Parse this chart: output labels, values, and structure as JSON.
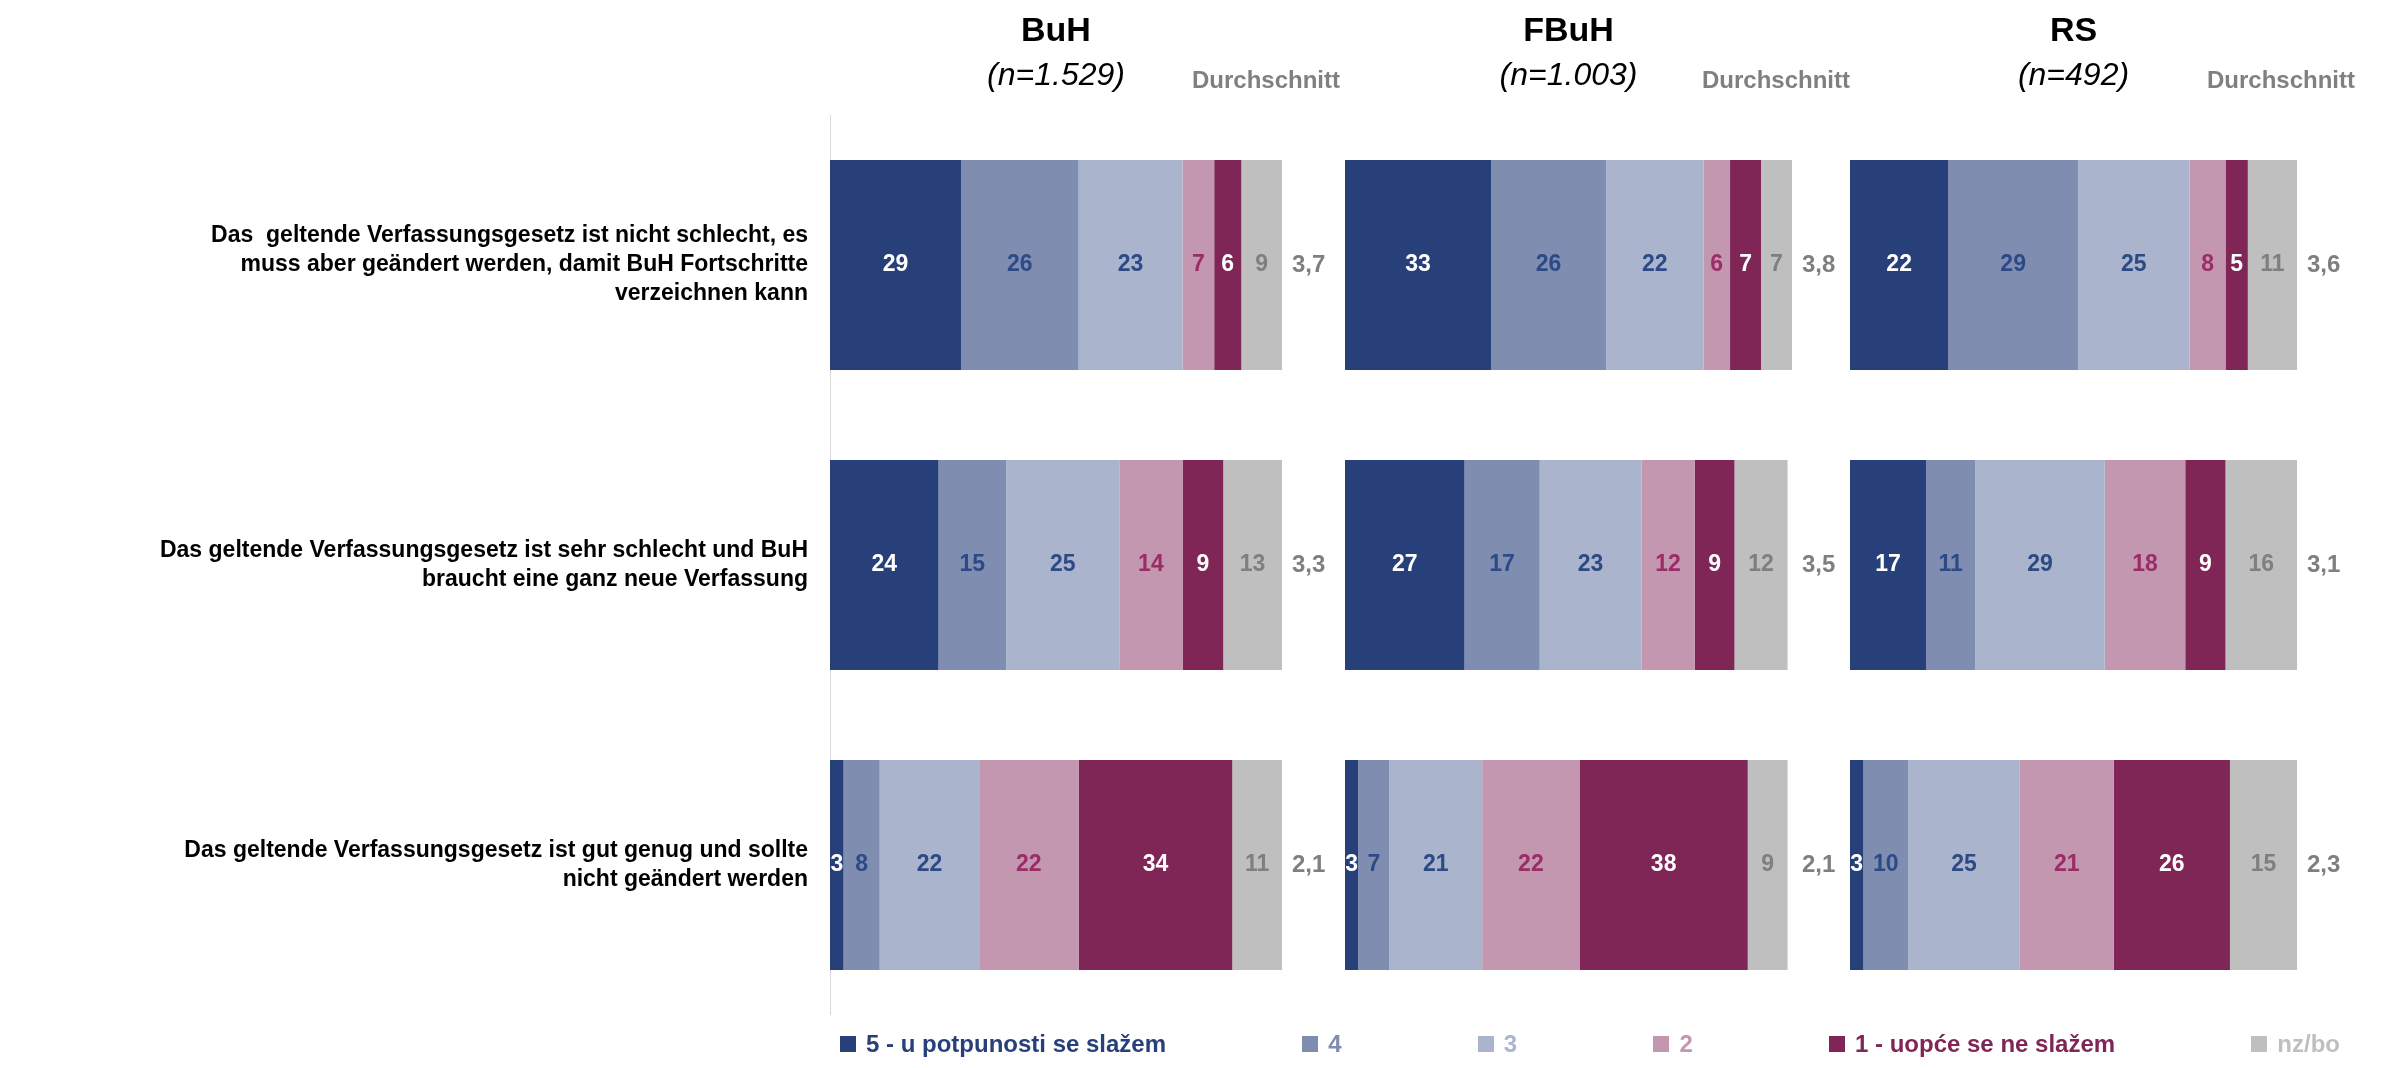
{
  "chart_data": [
    {
      "type": "bar",
      "orientation": "horizontal",
      "stacked": true,
      "title": "BuH",
      "subtitle": "(n=1.529)",
      "categories": [
        "Das  geltende Verfassungsgesetz ist nicht schlecht, es muss aber geändert werden, damit BuH Fortschritte verzeichnen kann",
        "Das geltende Verfassungsgesetz ist sehr schlecht und BuH braucht eine ganz neue Verfassung",
        "Das geltende Verfassungsgesetz ist gut genug und sollte nicht geändert werden"
      ],
      "tick_labels": "y",
      "data_labels": true,
      "legend": "bottom",
      "annotations": [
        "Durchschnitt",
        "3,7",
        "3,3",
        "2,1"
      ],
      "series": [
        {
          "name": "5 - u potpunosti se slažem",
          "color": "#27407a",
          "values": [
            29,
            24,
            3
          ]
        },
        {
          "name": "4",
          "color": "#7f8db0",
          "values": [
            26,
            15,
            8
          ]
        },
        {
          "name": "3",
          "color": "#aab4cc",
          "values": [
            23,
            25,
            22
          ]
        },
        {
          "name": "2",
          "color": "#c397af",
          "values": [
            7,
            14,
            22
          ]
        },
        {
          "name": "1 - uopće se ne slažem",
          "color": "#7f2657",
          "values": [
            6,
            9,
            34
          ]
        },
        {
          "name": "nz/bo",
          "color": "#bfbfbf",
          "values": [
            9,
            13,
            11
          ]
        }
      ]
    },
    {
      "type": "bar",
      "orientation": "horizontal",
      "stacked": true,
      "title": "FBuH",
      "subtitle": "(n=1.003)",
      "categories": [
        null,
        null,
        null
      ],
      "tick_labels": false,
      "data_labels": true,
      "annotations": [
        "Durchschnitt",
        "3,8",
        "3,5",
        "2,1"
      ],
      "series": [
        {
          "color": "#27407a",
          "values": [
            33,
            27,
            3
          ]
        },
        {
          "color": "#7f8db0",
          "values": [
            26,
            17,
            7
          ]
        },
        {
          "color": "#aab4cc",
          "values": [
            22,
            23,
            21
          ]
        },
        {
          "color": "#c397af",
          "values": [
            6,
            12,
            22
          ]
        },
        {
          "color": "#7f2657",
          "values": [
            7,
            9,
            38
          ]
        },
        {
          "color": "#bfbfbf",
          "values": [
            7,
            12,
            9
          ]
        }
      ]
    },
    {
      "type": "bar",
      "orientation": "horizontal",
      "stacked": true,
      "title": "RS",
      "subtitle": "(n=492)",
      "categories": [
        null,
        null,
        null
      ],
      "tick_labels": false,
      "data_labels": true,
      "annotations": [
        "Durchschnitt",
        "3,6",
        "3,1",
        "2,3"
      ],
      "series": [
        {
          "color": "#27407a",
          "values": [
            22,
            17,
            3
          ]
        },
        {
          "color": "#7f8db0",
          "values": [
            29,
            11,
            10
          ]
        },
        {
          "color": "#aab4cc",
          "values": [
            25,
            29,
            25
          ]
        },
        {
          "color": "#c397af",
          "values": [
            8,
            18,
            21
          ]
        },
        {
          "color": "#7f2657",
          "values": [
            5,
            9,
            26
          ]
        },
        {
          "color": "#bfbfbf",
          "values": [
            11,
            16,
            15
          ]
        }
      ]
    }
  ]
}
